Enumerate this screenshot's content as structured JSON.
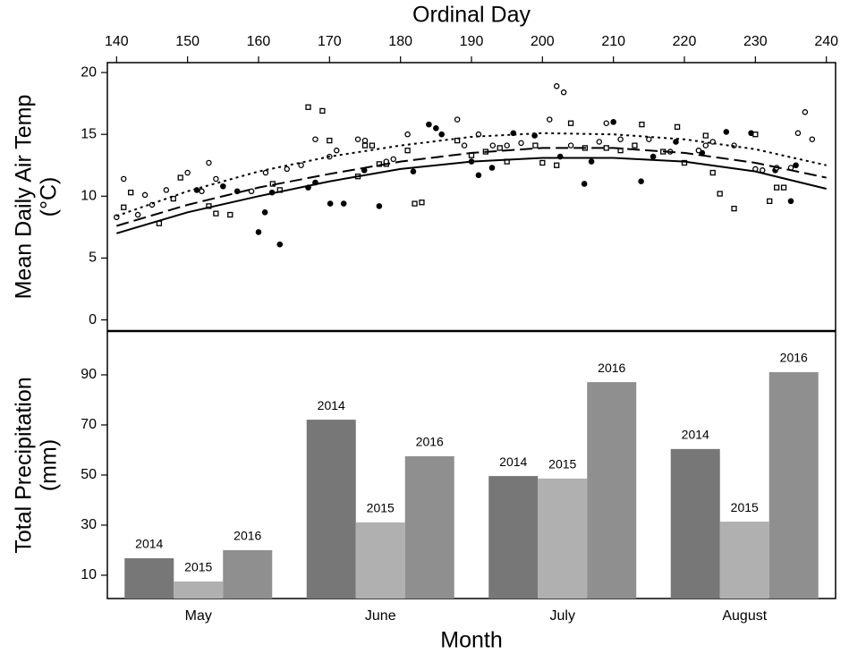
{
  "chart_data": [
    {
      "type": "scatter",
      "x_label": "Ordinal Day",
      "y_label": [
        "Mean Daily Air Temp",
        "(°C)"
      ],
      "xlim": [
        138.7,
        241.3
      ],
      "xticks": [
        140,
        150,
        160,
        170,
        180,
        190,
        200,
        210,
        220,
        230,
        240
      ],
      "ylim": [
        -0.9,
        20.8
      ],
      "yticks": [
        0,
        5,
        10,
        15,
        20
      ],
      "series": [
        {
          "kind": "points",
          "marker": "filled-circle",
          "color": "#000000",
          "x": [
            151.3,
            155.0,
            157.0,
            160.0,
            160.9,
            161.9,
            163.0,
            167.0,
            168.0,
            170.1,
            172.0,
            174.9,
            177.0,
            181.8,
            184.0,
            185.0,
            185.8,
            190.0,
            191.0,
            192.9,
            195.9,
            198.9,
            202.5,
            205.9,
            206.9,
            210.0,
            213.9,
            215.6,
            218.8,
            222.5,
            225.9,
            229.4,
            232.8,
            235.0,
            235.7
          ],
          "values": [
            10.5,
            10.8,
            10.4,
            7.1,
            8.7,
            10.3,
            6.1,
            10.7,
            11.1,
            9.4,
            9.4,
            12.1,
            9.2,
            12.0,
            15.8,
            15.5,
            15.0,
            12.8,
            11.7,
            12.3,
            15.1,
            14.9,
            13.2,
            11.0,
            12.8,
            16.0,
            11.2,
            13.2,
            14.4,
            13.5,
            15.2,
            15.1,
            12.1,
            9.6,
            12.5
          ]
        },
        {
          "kind": "points",
          "marker": "square",
          "color": "#000000",
          "x": [
            141,
            142,
            146,
            148,
            149,
            153,
            154,
            156,
            162,
            163,
            167,
            169,
            170,
            174,
            175,
            176,
            177,
            178,
            181,
            182,
            183,
            188,
            190,
            192,
            194,
            195,
            199,
            200,
            202,
            204,
            206,
            209,
            211,
            213,
            214,
            217,
            219,
            220,
            223,
            224,
            225,
            227,
            230,
            232,
            233,
            234
          ],
          "values": [
            9.1,
            10.3,
            7.8,
            9.8,
            11.5,
            9.2,
            8.6,
            8.5,
            11.0,
            10.5,
            17.2,
            16.9,
            14.5,
            11.6,
            14.1,
            14.1,
            12.6,
            12.6,
            13.7,
            9.4,
            9.5,
            14.5,
            13.3,
            13.6,
            13.9,
            12.8,
            14.1,
            12.7,
            12.5,
            15.9,
            13.9,
            13.9,
            13.7,
            14.1,
            15.8,
            13.6,
            15.6,
            12.7,
            14.9,
            11.9,
            10.2,
            9.0,
            15.0,
            9.6,
            10.7,
            10.7
          ]
        },
        {
          "kind": "points",
          "marker": "circle",
          "color": "#000000",
          "x": [
            140,
            141,
            143,
            144,
            145,
            147,
            150,
            152,
            153,
            154,
            159,
            161,
            164,
            166,
            168,
            170,
            171,
            174,
            175,
            178,
            179,
            181,
            188,
            189,
            191,
            193,
            195,
            197,
            201,
            202,
            203,
            204,
            208,
            209,
            211,
            215,
            218,
            222,
            223,
            224,
            227,
            230,
            231,
            233,
            235,
            236,
            237,
            238
          ],
          "values": [
            8.3,
            11.4,
            8.5,
            10.1,
            9.3,
            10.5,
            11.9,
            10.4,
            12.7,
            11.4,
            10.4,
            11.9,
            12.2,
            12.5,
            14.6,
            13.2,
            13.7,
            14.6,
            14.5,
            12.8,
            13.0,
            15.0,
            16.2,
            14.1,
            15.0,
            14.1,
            14.1,
            14.3,
            16.2,
            18.9,
            18.4,
            14.1,
            14.4,
            15.9,
            14.6,
            14.6,
            13.6,
            13.7,
            14.1,
            14.4,
            14.1,
            12.2,
            12.1,
            12.3,
            12.3,
            15.1,
            16.8,
            14.6
          ]
        },
        {
          "kind": "line",
          "dash": "solid",
          "color": "#000000",
          "x": [
            140,
            150,
            160,
            170,
            180,
            190,
            200,
            210,
            220,
            230,
            240
          ],
          "values": [
            7.0,
            8.7,
            10.0,
            11.2,
            12.2,
            12.8,
            13.1,
            13.1,
            12.8,
            12.0,
            10.6
          ]
        },
        {
          "kind": "line",
          "dash": "dashed",
          "color": "#000000",
          "x": [
            140,
            150,
            160,
            170,
            180,
            190,
            200,
            210,
            220,
            230,
            240
          ],
          "values": [
            7.6,
            9.3,
            10.7,
            11.8,
            12.8,
            13.5,
            13.9,
            13.9,
            13.5,
            12.7,
            11.5
          ]
        },
        {
          "kind": "line",
          "dash": "dotted",
          "color": "#000000",
          "x": [
            140,
            150,
            160,
            170,
            180,
            190,
            200,
            210,
            220,
            230,
            240
          ],
          "values": [
            8.4,
            10.4,
            12.0,
            13.2,
            14.1,
            14.8,
            15.1,
            15.0,
            14.6,
            13.8,
            12.5
          ]
        }
      ]
    },
    {
      "type": "bar",
      "x_label": "Month",
      "y_label": [
        "Total Precipitation",
        "(mm)"
      ],
      "categories": [
        "May",
        "June",
        "July",
        "August"
      ],
      "ylim": [
        0.7,
        107.5
      ],
      "yticks": [
        10,
        30,
        50,
        70,
        90
      ],
      "series": [
        {
          "name": "2014",
          "color": "#777777",
          "values": [
            16.8,
            72.1,
            49.6,
            60.4
          ]
        },
        {
          "name": "2015",
          "color": "#b0b0b0",
          "values": [
            7.5,
            31.1,
            48.6,
            31.4
          ]
        },
        {
          "name": "2016",
          "color": "#8f8f8f",
          "values": [
            20.0,
            57.5,
            87.1,
            91.1
          ]
        }
      ]
    }
  ]
}
